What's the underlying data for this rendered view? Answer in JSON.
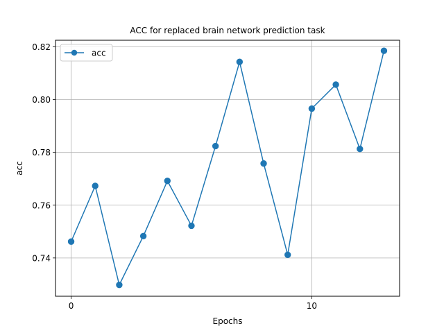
{
  "chart_data": {
    "type": "line",
    "title": "ACC for replaced brain network prediction task",
    "xlabel": "Epochs",
    "ylabel": "acc",
    "xlim": [
      -0.65,
      13.65
    ],
    "ylim": [
      0.7255,
      0.8225
    ],
    "xticks": [
      0,
      10
    ],
    "xtick_labels": [
      "0",
      "10"
    ],
    "yticks": [
      0.74,
      0.76,
      0.78,
      0.8,
      0.82
    ],
    "ytick_labels": [
      "0.74",
      "0.76",
      "0.78",
      "0.80",
      "0.82"
    ],
    "grid": true,
    "legend_position": "top-left",
    "series": [
      {
        "name": "acc",
        "color": "#1f77b4",
        "marker": "circle",
        "x": [
          0,
          1,
          2,
          3,
          4,
          5,
          6,
          7,
          8,
          9,
          10,
          11,
          12,
          13
        ],
        "values": [
          0.7462,
          0.7673,
          0.7298,
          0.7483,
          0.7692,
          0.7522,
          0.7824,
          0.8143,
          0.7758,
          0.7412,
          0.7966,
          0.8057,
          0.7813,
          0.8185
        ]
      }
    ]
  }
}
